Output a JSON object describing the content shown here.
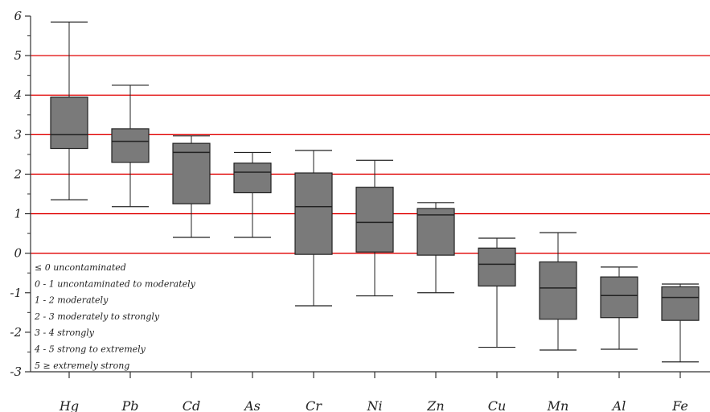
{
  "chart_data": {
    "type": "box",
    "title": "",
    "xlabel": "",
    "ylabel": "",
    "ylim": [
      -3,
      6
    ],
    "yticks": [
      -3,
      -2,
      -1,
      0,
      1,
      2,
      3,
      4,
      5,
      6
    ],
    "reference_lines": [
      0,
      1,
      2,
      3,
      4,
      5
    ],
    "reference_line_color": "#e00000",
    "box_fill": "#7a7a7a",
    "categories": [
      "Hg",
      "Pb",
      "Cd",
      "As",
      "Cr",
      "Ni",
      "Zn",
      "Cu",
      "Mn",
      "Al",
      "Fe"
    ],
    "boxes": [
      {
        "min": 1.35,
        "q1": 2.65,
        "median": 3.0,
        "q3": 3.95,
        "max": 5.85
      },
      {
        "min": 1.18,
        "q1": 2.3,
        "median": 2.83,
        "q3": 3.15,
        "max": 4.25
      },
      {
        "min": 0.4,
        "q1": 1.25,
        "median": 2.55,
        "q3": 2.78,
        "max": 2.97
      },
      {
        "min": 0.4,
        "q1": 1.53,
        "median": 2.05,
        "q3": 2.28,
        "max": 2.55
      },
      {
        "min": -1.33,
        "q1": -0.03,
        "median": 1.18,
        "q3": 2.03,
        "max": 2.6
      },
      {
        "min": -1.08,
        "q1": 0.03,
        "median": 0.78,
        "q3": 1.67,
        "max": 2.35
      },
      {
        "min": -1.0,
        "q1": -0.05,
        "median": 0.97,
        "q3": 1.13,
        "max": 1.28
      },
      {
        "min": -2.38,
        "q1": -0.83,
        "median": -0.28,
        "q3": 0.13,
        "max": 0.38
      },
      {
        "min": -2.45,
        "q1": -1.67,
        "median": -0.88,
        "q3": -0.22,
        "max": 0.52
      },
      {
        "min": -2.43,
        "q1": -1.63,
        "median": -1.07,
        "q3": -0.6,
        "max": -0.35
      },
      {
        "min": -2.75,
        "q1": -1.7,
        "median": -1.12,
        "q3": -0.85,
        "max": -0.78
      }
    ],
    "legend_lines": [
      "≤ 0 uncontaminated",
      "0 - 1 uncontaminated to moderately",
      "1 - 2 moderately",
      "2 - 3 moderately to strongly",
      "3 - 4 strongly",
      "4 - 5 strong to extremely",
      "5 ≥ extremely strong"
    ]
  }
}
